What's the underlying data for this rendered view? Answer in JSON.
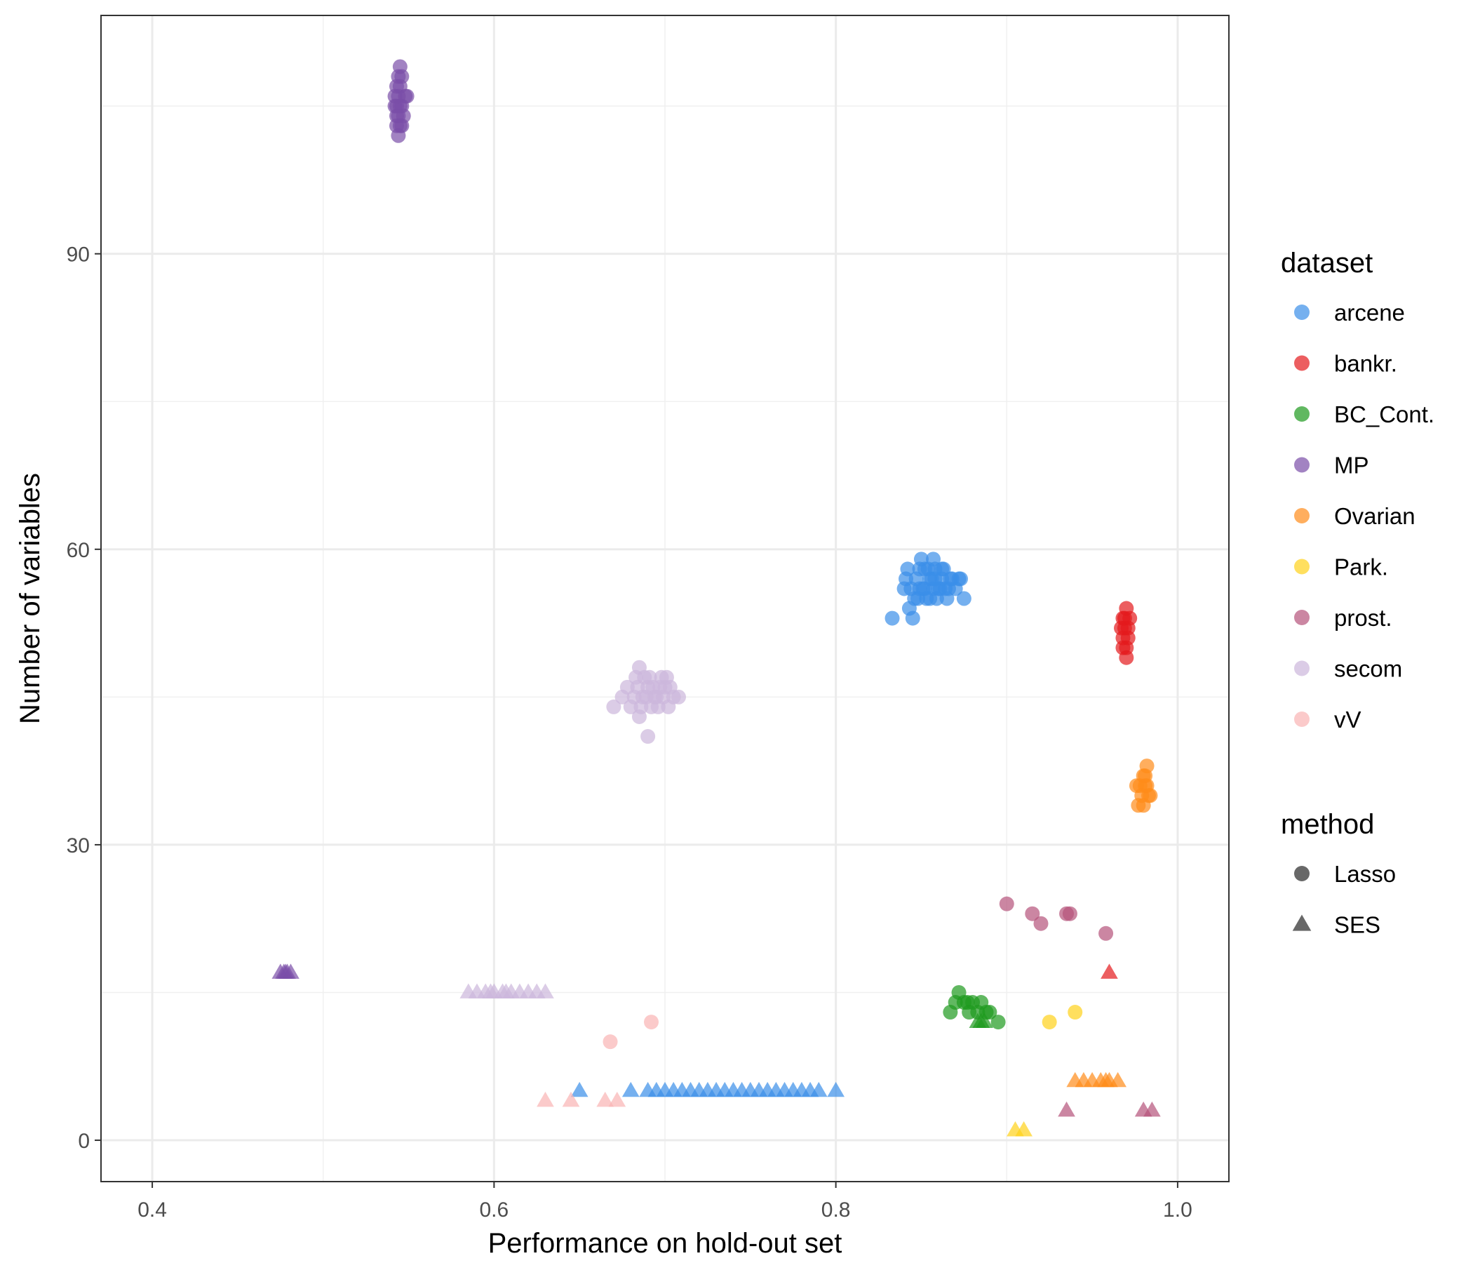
{
  "chart_data": {
    "type": "scatter",
    "title": "",
    "xlabel": "Performance on hold-out set",
    "ylabel": "Number of variables",
    "xlim": [
      0.37,
      1.03
    ],
    "ylim": [
      -4.2,
      114.2
    ],
    "x_ticks": [
      0.4,
      0.6,
      0.8,
      1.0
    ],
    "x_tick_labels": [
      "0.4",
      "0.6",
      "0.8",
      "1.0"
    ],
    "y_ticks": [
      0,
      30,
      60,
      90
    ],
    "y_tick_labels": [
      "0",
      "30",
      "60",
      "90"
    ],
    "x_minor_gridlines": [
      0.5,
      0.7,
      0.9
    ],
    "y_minor_gridlines": [
      15,
      45,
      75,
      105
    ],
    "grid": true,
    "legend_position": "right",
    "legend": {
      "dataset_title": "dataset",
      "method_title": "method",
      "datasets": [
        {
          "name": "arcene",
          "color": "#3a8fe8"
        },
        {
          "name": "bankr.",
          "color": "#e41a1c"
        },
        {
          "name": "BC_Cont.",
          "color": "#1e9a1e"
        },
        {
          "name": "MP",
          "color": "#7b4fa8"
        },
        {
          "name": "Ovarian",
          "color": "#ff8c1a"
        },
        {
          "name": "Park.",
          "color": "#ffd21a"
        },
        {
          "name": "prost.",
          "color": "#b5527a"
        },
        {
          "name": "secom",
          "color": "#ccb6dc"
        },
        {
          "name": "vV",
          "color": "#f9b3b3"
        }
      ],
      "methods": [
        {
          "name": "Lasso",
          "shape": "circle"
        },
        {
          "name": "SES",
          "shape": "triangle"
        }
      ]
    },
    "series": [
      {
        "dataset": "MP",
        "method": "Lasso",
        "points": [
          [
            0.544,
            106
          ],
          [
            0.543,
            105
          ],
          [
            0.545,
            107
          ],
          [
            0.544,
            104
          ],
          [
            0.546,
            103
          ],
          [
            0.543,
            104
          ],
          [
            0.545,
            105
          ],
          [
            0.542,
            106
          ],
          [
            0.548,
            106
          ],
          [
            0.544,
            108
          ],
          [
            0.546,
            105
          ],
          [
            0.543,
            107
          ],
          [
            0.547,
            104
          ],
          [
            0.545,
            109
          ],
          [
            0.544,
            102
          ],
          [
            0.549,
            106
          ],
          [
            0.542,
            105
          ],
          [
            0.546,
            108
          ],
          [
            0.545,
            103
          ],
          [
            0.543,
            103
          ]
        ]
      },
      {
        "dataset": "MP",
        "method": "SES",
        "points": [
          [
            0.475,
            17
          ],
          [
            0.478,
            17
          ],
          [
            0.481,
            17
          ],
          [
            0.477,
            17
          ],
          [
            0.479,
            17
          ]
        ]
      },
      {
        "dataset": "arcene",
        "method": "Lasso",
        "points": [
          [
            0.833,
            53
          ],
          [
            0.843,
            54
          ],
          [
            0.845,
            53
          ],
          [
            0.848,
            55
          ],
          [
            0.852,
            56
          ],
          [
            0.855,
            57
          ],
          [
            0.858,
            58
          ],
          [
            0.86,
            56
          ],
          [
            0.862,
            57
          ],
          [
            0.865,
            55
          ],
          [
            0.84,
            56
          ],
          [
            0.842,
            58
          ],
          [
            0.85,
            59
          ],
          [
            0.853,
            55
          ],
          [
            0.857,
            56
          ],
          [
            0.863,
            58
          ],
          [
            0.867,
            57
          ],
          [
            0.87,
            56
          ],
          [
            0.872,
            57
          ],
          [
            0.875,
            55
          ],
          [
            0.847,
            57
          ],
          [
            0.849,
            58
          ],
          [
            0.851,
            56
          ],
          [
            0.856,
            57
          ],
          [
            0.859,
            55
          ],
          [
            0.864,
            56
          ],
          [
            0.868,
            57
          ],
          [
            0.841,
            57
          ],
          [
            0.844,
            56
          ],
          [
            0.854,
            58
          ],
          [
            0.861,
            56
          ],
          [
            0.866,
            56
          ],
          [
            0.873,
            57
          ],
          [
            0.846,
            55
          ],
          [
            0.858,
            57
          ],
          [
            0.852,
            58
          ],
          [
            0.855,
            55
          ],
          [
            0.862,
            58
          ],
          [
            0.857,
            59
          ],
          [
            0.849,
            56
          ]
        ]
      },
      {
        "dataset": "arcene",
        "method": "SES",
        "points": [
          [
            0.65,
            5
          ],
          [
            0.68,
            5
          ],
          [
            0.69,
            5
          ],
          [
            0.695,
            5
          ],
          [
            0.7,
            5
          ],
          [
            0.705,
            5
          ],
          [
            0.71,
            5
          ],
          [
            0.715,
            5
          ],
          [
            0.72,
            5
          ],
          [
            0.725,
            5
          ],
          [
            0.73,
            5
          ],
          [
            0.735,
            5
          ],
          [
            0.74,
            5
          ],
          [
            0.745,
            5
          ],
          [
            0.75,
            5
          ],
          [
            0.755,
            5
          ],
          [
            0.76,
            5
          ],
          [
            0.765,
            5
          ],
          [
            0.77,
            5
          ],
          [
            0.775,
            5
          ],
          [
            0.78,
            5
          ],
          [
            0.785,
            5
          ],
          [
            0.79,
            5
          ],
          [
            0.8,
            5
          ]
        ]
      },
      {
        "dataset": "bankr.",
        "method": "Lasso",
        "points": [
          [
            0.968,
            53
          ],
          [
            0.97,
            54
          ],
          [
            0.969,
            52
          ],
          [
            0.971,
            51
          ],
          [
            0.968,
            50
          ],
          [
            0.97,
            49
          ],
          [
            0.969,
            53
          ],
          [
            0.971,
            52
          ],
          [
            0.968,
            51
          ],
          [
            0.97,
            50
          ],
          [
            0.972,
            53
          ],
          [
            0.967,
            52
          ]
        ]
      },
      {
        "dataset": "bankr.",
        "method": "SES",
        "points": [
          [
            0.96,
            17
          ]
        ]
      },
      {
        "dataset": "BC_Cont.",
        "method": "Lasso",
        "points": [
          [
            0.867,
            13
          ],
          [
            0.872,
            15
          ],
          [
            0.875,
            14
          ],
          [
            0.878,
            13
          ],
          [
            0.88,
            14
          ],
          [
            0.883,
            13
          ],
          [
            0.885,
            14
          ],
          [
            0.888,
            13
          ],
          [
            0.89,
            13
          ],
          [
            0.895,
            12
          ],
          [
            0.87,
            14
          ],
          [
            0.877,
            14
          ]
        ]
      },
      {
        "dataset": "BC_Cont.",
        "method": "SES",
        "points": [
          [
            0.883,
            12
          ],
          [
            0.885,
            12
          ],
          [
            0.887,
            12
          ]
        ]
      },
      {
        "dataset": "Ovarian",
        "method": "Lasso",
        "points": [
          [
            0.978,
            36
          ],
          [
            0.98,
            37
          ],
          [
            0.982,
            38
          ],
          [
            0.979,
            35
          ],
          [
            0.981,
            36
          ],
          [
            0.983,
            35
          ],
          [
            0.977,
            34
          ],
          [
            0.98,
            34
          ],
          [
            0.982,
            36
          ],
          [
            0.984,
            35
          ],
          [
            0.976,
            36
          ],
          [
            0.981,
            37
          ]
        ]
      },
      {
        "dataset": "Ovarian",
        "method": "SES",
        "points": [
          [
            0.94,
            6
          ],
          [
            0.945,
            6
          ],
          [
            0.95,
            6
          ],
          [
            0.955,
            6
          ],
          [
            0.96,
            6
          ],
          [
            0.965,
            6
          ],
          [
            0.958,
            6
          ]
        ]
      },
      {
        "dataset": "Park.",
        "method": "Lasso",
        "points": [
          [
            0.925,
            12
          ],
          [
            0.94,
            13
          ]
        ]
      },
      {
        "dataset": "Park.",
        "method": "SES",
        "points": [
          [
            0.905,
            1
          ],
          [
            0.91,
            1
          ]
        ]
      },
      {
        "dataset": "prost.",
        "method": "Lasso",
        "points": [
          [
            0.9,
            24
          ],
          [
            0.915,
            23
          ],
          [
            0.92,
            22
          ],
          [
            0.935,
            23
          ],
          [
            0.937,
            23
          ],
          [
            0.958,
            21
          ]
        ]
      },
      {
        "dataset": "prost.",
        "method": "SES",
        "points": [
          [
            0.935,
            3
          ],
          [
            0.98,
            3
          ],
          [
            0.985,
            3
          ]
        ]
      },
      {
        "dataset": "secom",
        "method": "Lasso",
        "points": [
          [
            0.67,
            44
          ],
          [
            0.675,
            45
          ],
          [
            0.678,
            46
          ],
          [
            0.68,
            44
          ],
          [
            0.683,
            47
          ],
          [
            0.685,
            48
          ],
          [
            0.687,
            45
          ],
          [
            0.69,
            46
          ],
          [
            0.692,
            44
          ],
          [
            0.695,
            45
          ],
          [
            0.698,
            47
          ],
          [
            0.7,
            46
          ],
          [
            0.702,
            44
          ],
          [
            0.705,
            45
          ],
          [
            0.708,
            45
          ],
          [
            0.69,
            41
          ],
          [
            0.685,
            43
          ],
          [
            0.682,
            45
          ],
          [
            0.688,
            47
          ],
          [
            0.693,
            46
          ],
          [
            0.696,
            44
          ],
          [
            0.699,
            45
          ],
          [
            0.703,
            46
          ],
          [
            0.684,
            46
          ],
          [
            0.691,
            47
          ],
          [
            0.686,
            44
          ],
          [
            0.694,
            45
          ],
          [
            0.697,
            46
          ],
          [
            0.689,
            45
          ],
          [
            0.701,
            47
          ]
        ]
      },
      {
        "dataset": "secom",
        "method": "SES",
        "points": [
          [
            0.585,
            15
          ],
          [
            0.59,
            15
          ],
          [
            0.595,
            15
          ],
          [
            0.6,
            15
          ],
          [
            0.605,
            15
          ],
          [
            0.61,
            15
          ],
          [
            0.615,
            15
          ],
          [
            0.62,
            15
          ],
          [
            0.625,
            15
          ],
          [
            0.63,
            15
          ],
          [
            0.598,
            15
          ],
          [
            0.607,
            15
          ]
        ]
      },
      {
        "dataset": "vV",
        "method": "Lasso",
        "points": [
          [
            0.668,
            10
          ],
          [
            0.692,
            12
          ]
        ]
      },
      {
        "dataset": "vV",
        "method": "SES",
        "points": [
          [
            0.63,
            4
          ],
          [
            0.645,
            4
          ],
          [
            0.665,
            4
          ],
          [
            0.672,
            4
          ]
        ]
      }
    ]
  }
}
